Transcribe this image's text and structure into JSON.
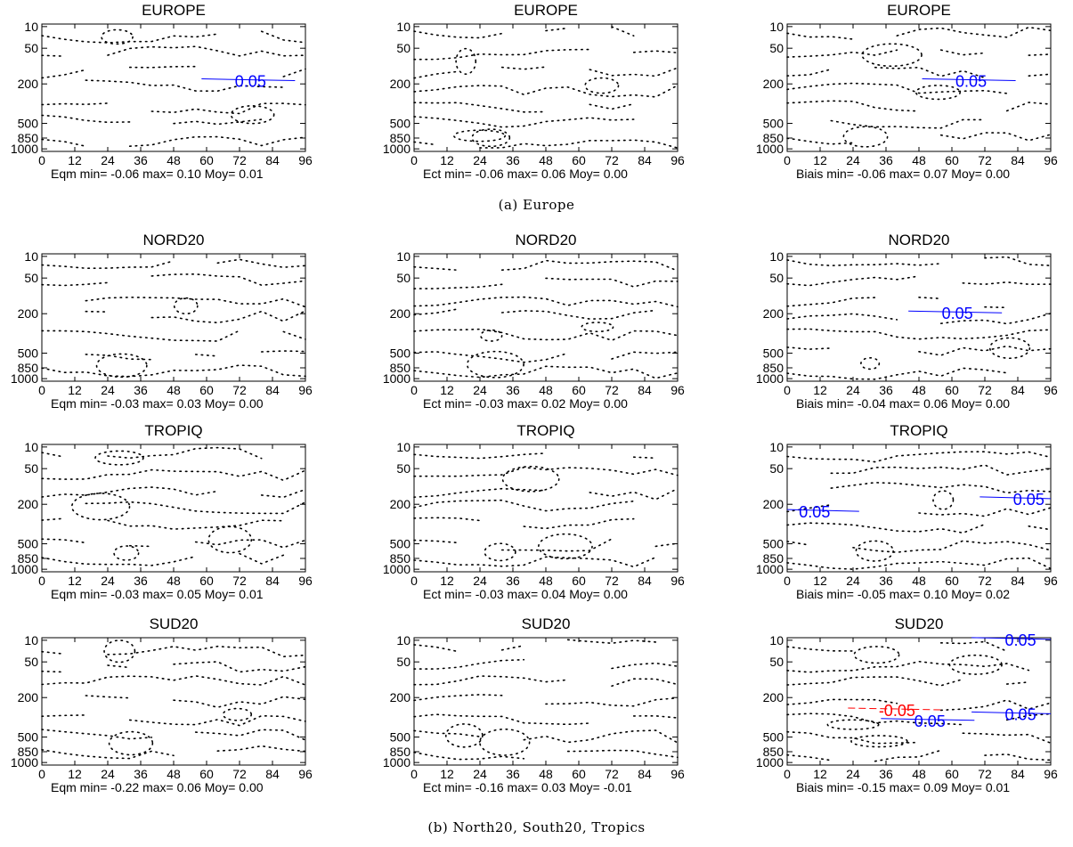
{
  "captions": {
    "a": "(a)  Europe",
    "b": "(b)  North20, South20, Tropics"
  },
  "axes": {
    "x_ticks": [
      "0",
      "12",
      "24",
      "36",
      "48",
      "60",
      "72",
      "84",
      "96"
    ],
    "y_ticks": [
      "10",
      "50",
      "200",
      "500",
      "850",
      "1000"
    ]
  },
  "colors": {
    "positive": "#0000ff",
    "negative": "#ff0000",
    "zero": "#000000"
  },
  "chart_data": [
    {
      "type": "contour",
      "title": "EUROPE",
      "stat": "Eqm",
      "stats": {
        "min": "-0.06",
        "max": "0.10",
        "moy": "0.01"
      },
      "contour_labels": [
        {
          "text": "0.05",
          "color": "blue",
          "x": 76,
          "y": 190
        }
      ]
    },
    {
      "type": "contour",
      "title": "EUROPE",
      "stat": "Ect",
      "stats": {
        "min": "-0.06",
        "max": "0.06",
        "moy": "0.00"
      },
      "contour_labels": []
    },
    {
      "type": "contour",
      "title": "EUROPE",
      "stat": "Biais",
      "stats": {
        "min": "-0.06",
        "max": "0.07",
        "moy": "0.00"
      },
      "contour_labels": [
        {
          "text": "0.05",
          "color": "blue",
          "x": 67,
          "y": 190
        }
      ]
    },
    {
      "type": "contour",
      "title": "NORD20",
      "stat": "Eqm",
      "stats": {
        "min": "-0.03",
        "max": "0.03",
        "moy": "0.00"
      },
      "contour_labels": []
    },
    {
      "type": "contour",
      "title": "NORD20",
      "stat": "Ect",
      "stats": {
        "min": "-0.03",
        "max": "0.02",
        "moy": "0.00"
      },
      "contour_labels": []
    },
    {
      "type": "contour",
      "title": "NORD20",
      "stat": "Biais",
      "stats": {
        "min": "-0.04",
        "max": "0.06",
        "moy": "0.00"
      },
      "contour_labels": [
        {
          "text": "0.05",
          "color": "blue",
          "x": 62,
          "y": 200
        }
      ]
    },
    {
      "type": "contour",
      "title": "TROPIQ",
      "stat": "Eqm",
      "stats": {
        "min": "-0.03",
        "max": "0.05",
        "moy": "0.01"
      },
      "contour_labels": []
    },
    {
      "type": "contour",
      "title": "TROPIQ",
      "stat": "Ect",
      "stats": {
        "min": "-0.03",
        "max": "0.04",
        "moy": "0.00"
      },
      "contour_labels": []
    },
    {
      "type": "contour",
      "title": "TROPIQ",
      "stat": "Biais",
      "stats": {
        "min": "-0.05",
        "max": "0.10",
        "moy": "0.02"
      },
      "contour_labels": [
        {
          "text": "0.05",
          "color": "blue",
          "x": 88,
          "y": 180
        },
        {
          "text": "0.05",
          "color": "blue",
          "x": 10,
          "y": 260
        }
      ]
    },
    {
      "type": "contour",
      "title": "SUD20",
      "stat": "Eqm",
      "stats": {
        "min": "-0.22",
        "max": "0.06",
        "moy": "0.00"
      },
      "contour_labels": []
    },
    {
      "type": "contour",
      "title": "SUD20",
      "stat": "Ect",
      "stats": {
        "min": "-0.16",
        "max": "0.03",
        "moy": "-0.01"
      },
      "contour_labels": []
    },
    {
      "type": "contour",
      "title": "SUD20",
      "stat": "Biais",
      "stats": {
        "min": "-0.15",
        "max": "0.09",
        "moy": "0.01"
      },
      "contour_labels": [
        {
          "text": "0.05",
          "color": "blue",
          "x": 85,
          "y": 10
        },
        {
          "text": "-0.05",
          "color": "red",
          "x": 40,
          "y": 300
        },
        {
          "text": "0.05",
          "color": "blue",
          "x": 85,
          "y": 330
        },
        {
          "text": "0.05",
          "color": "blue",
          "x": 52,
          "y": 380
        }
      ]
    }
  ]
}
